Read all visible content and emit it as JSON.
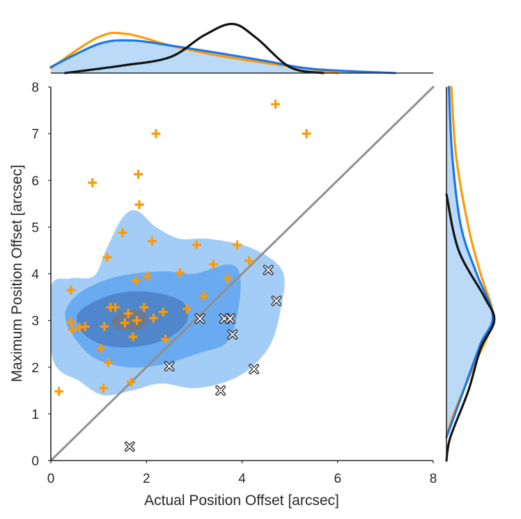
{
  "chart_data": {
    "type": "scatter",
    "kind": "jointplot",
    "xlabel": "Actual Position Offset [arcsec]",
    "ylabel": "Maximum Position Offset [arcsec]",
    "xlim": [
      0,
      8
    ],
    "ylim": [
      0,
      8
    ],
    "xticks": [
      "0",
      "2",
      "4",
      "6",
      "8"
    ],
    "yticks": [
      "0",
      "1",
      "2",
      "3",
      "4",
      "5",
      "6",
      "7",
      "8"
    ],
    "colors": {
      "orange": "#ff9900",
      "blue": "#1a75e8",
      "black": "#111111",
      "identity_line": "#8f8f8f",
      "kde_level_1": "#a3cdf6",
      "kde_level_2": "#6aaaf0",
      "kde_level_3": "#4f86cc",
      "kde_level_4": "#6b7c92"
    },
    "series": [
      {
        "name": "plus markers",
        "marker": "plus",
        "color": "#ff9900",
        "points": [
          [
            0.17,
            1.48
          ],
          [
            0.42,
            3.65
          ],
          [
            0.42,
            2.97
          ],
          [
            0.45,
            2.8
          ],
          [
            0.6,
            2.85
          ],
          [
            0.72,
            2.87
          ],
          [
            0.87,
            5.95
          ],
          [
            1.05,
            2.4
          ],
          [
            1.1,
            1.55
          ],
          [
            1.12,
            2.87
          ],
          [
            1.18,
            4.35
          ],
          [
            1.2,
            2.1
          ],
          [
            1.25,
            3.28
          ],
          [
            1.35,
            3.28
          ],
          [
            1.5,
            4.88
          ],
          [
            1.55,
            2.95
          ],
          [
            1.62,
            3.15
          ],
          [
            1.68,
            1.68
          ],
          [
            1.72,
            2.65
          ],
          [
            1.78,
            3.85
          ],
          [
            1.8,
            3.0
          ],
          [
            1.83,
            6.13
          ],
          [
            1.85,
            5.48
          ],
          [
            1.95,
            3.28
          ],
          [
            2.02,
            3.95
          ],
          [
            2.12,
            4.7
          ],
          [
            2.15,
            3.05
          ],
          [
            2.2,
            7.0
          ],
          [
            2.35,
            3.18
          ],
          [
            2.4,
            2.6
          ],
          [
            2.7,
            4.02
          ],
          [
            2.85,
            3.25
          ],
          [
            3.05,
            4.62
          ],
          [
            3.2,
            3.52
          ],
          [
            3.4,
            4.2
          ],
          [
            3.7,
            3.9
          ],
          [
            3.9,
            4.62
          ],
          [
            4.15,
            4.28
          ],
          [
            4.7,
            7.63
          ],
          [
            5.35,
            7.0
          ]
        ]
      },
      {
        "name": "x markers",
        "marker": "x",
        "color": "#111111",
        "points": [
          [
            1.65,
            0.3
          ],
          [
            2.48,
            2.02
          ],
          [
            3.12,
            3.04
          ],
          [
            3.55,
            1.5
          ],
          [
            3.63,
            3.04
          ],
          [
            3.75,
            3.04
          ],
          [
            3.8,
            2.7
          ],
          [
            4.25,
            1.96
          ],
          [
            4.55,
            4.08
          ],
          [
            4.72,
            3.42
          ]
        ]
      }
    ],
    "identity_line": {
      "from": [
        0,
        0
      ],
      "to": [
        8,
        8
      ]
    },
    "kde_contours": [
      {
        "level": 1,
        "points": [
          [
            0,
            3.7
          ],
          [
            0.4,
            3.9
          ],
          [
            0.9,
            3.95
          ],
          [
            1.15,
            4.5
          ],
          [
            1.5,
            5.2
          ],
          [
            1.8,
            5.35
          ],
          [
            2.2,
            5.0
          ],
          [
            2.7,
            4.75
          ],
          [
            3.3,
            4.75
          ],
          [
            4.2,
            4.55
          ],
          [
            4.85,
            4.05
          ],
          [
            4.8,
            3.2
          ],
          [
            4.6,
            2.5
          ],
          [
            4.2,
            2.0
          ],
          [
            3.7,
            1.7
          ],
          [
            3.0,
            1.55
          ],
          [
            2.3,
            1.65
          ],
          [
            1.7,
            1.5
          ],
          [
            1.1,
            1.4
          ],
          [
            0.6,
            1.7
          ],
          [
            0.05,
            2.15
          ]
        ]
      },
      {
        "level": 2,
        "points": [
          [
            0.3,
            3.15
          ],
          [
            0.55,
            3.55
          ],
          [
            1.1,
            3.85
          ],
          [
            1.7,
            4.0
          ],
          [
            2.4,
            4.05
          ],
          [
            3.0,
            4.0
          ],
          [
            3.7,
            4.2
          ],
          [
            3.95,
            4.0
          ],
          [
            3.93,
            3.3
          ],
          [
            3.7,
            2.55
          ],
          [
            3.1,
            2.3
          ],
          [
            2.3,
            2.05
          ],
          [
            1.6,
            2.0
          ],
          [
            0.9,
            2.2
          ],
          [
            0.45,
            2.7
          ]
        ]
      },
      {
        "level": 3,
        "points": [
          [
            0.55,
            3.1
          ],
          [
            0.9,
            3.4
          ],
          [
            1.5,
            3.6
          ],
          [
            2.15,
            3.6
          ],
          [
            2.75,
            3.4
          ],
          [
            2.85,
            3.0
          ],
          [
            2.5,
            2.65
          ],
          [
            1.9,
            2.45
          ],
          [
            1.2,
            2.45
          ],
          [
            0.7,
            2.7
          ]
        ]
      },
      {
        "level": 4,
        "points": [
          [
            1.3,
            3.05
          ],
          [
            1.55,
            3.2
          ],
          [
            1.9,
            3.2
          ],
          [
            2.05,
            3.0
          ],
          [
            1.85,
            2.8
          ],
          [
            1.45,
            2.8
          ],
          [
            1.28,
            2.9
          ]
        ]
      }
    ],
    "marginal_top": {
      "series": [
        {
          "name": "orange kde",
          "color": "#ff9900",
          "x": [
            0,
            1,
            1.6,
            2.5,
            3.5,
            4.5,
            5.5,
            6.0
          ],
          "density": [
            0.1,
            0.72,
            0.78,
            0.55,
            0.35,
            0.2,
            0.07,
            0.0
          ]
        },
        {
          "name": "blue kde",
          "color": "#1a75e8",
          "x": [
            0,
            1,
            1.7,
            2.5,
            3.5,
            4.5,
            5.5,
            7.2
          ],
          "density": [
            0.12,
            0.58,
            0.65,
            0.55,
            0.4,
            0.24,
            0.08,
            0.0
          ]
        },
        {
          "name": "black kde",
          "color": "#111111",
          "x": [
            0.3,
            1.5,
            2.5,
            3.2,
            3.8,
            4.3,
            5.0,
            5.7
          ],
          "density": [
            0.0,
            0.15,
            0.32,
            0.75,
            0.98,
            0.7,
            0.12,
            0.0
          ]
        }
      ]
    },
    "marginal_right": {
      "series": [
        {
          "name": "orange kde",
          "color": "#ff9900",
          "y": [
            8,
            6.5,
            5,
            4,
            3.2,
            2.8,
            2,
            1,
            0.5
          ],
          "density": [
            0.1,
            0.2,
            0.45,
            0.7,
            0.95,
            0.9,
            0.55,
            0.15,
            0.0
          ]
        },
        {
          "name": "blue kde",
          "color": "#1a75e8",
          "y": [
            8,
            6.5,
            5,
            4,
            3.1,
            2.5,
            1.5,
            0.5
          ],
          "density": [
            0.05,
            0.12,
            0.3,
            0.62,
            0.95,
            0.7,
            0.35,
            0.0
          ]
        },
        {
          "name": "black kde",
          "color": "#111111",
          "y": [
            5.7,
            4.5,
            3.5,
            3.0,
            2.4,
            1.5,
            0.5,
            0.0
          ],
          "density": [
            0.0,
            0.25,
            0.78,
            0.98,
            0.7,
            0.45,
            0.08,
            0.0
          ]
        }
      ]
    }
  }
}
